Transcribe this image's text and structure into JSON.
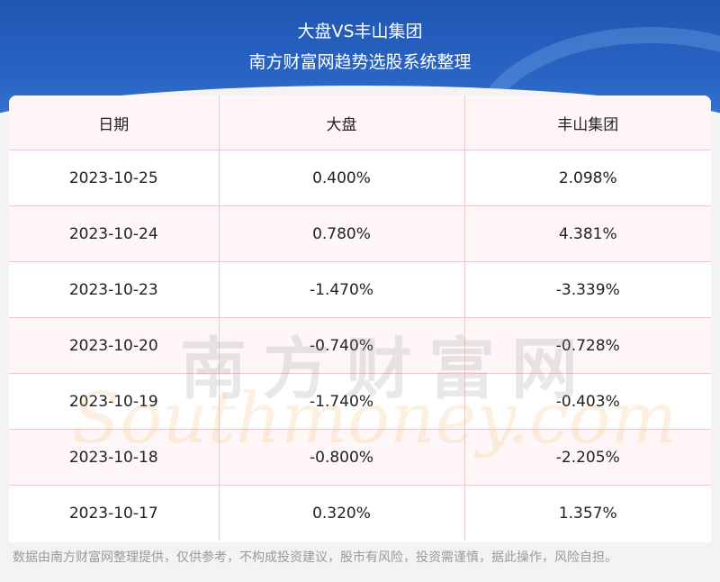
{
  "header": {
    "title": "大盘VS丰山集团",
    "subtitle": "南方财富网趋势选股系统整理"
  },
  "table": {
    "columns": [
      "日期",
      "大盘",
      "丰山集团"
    ],
    "rows": [
      [
        "2023-10-25",
        "0.400%",
        "2.098%"
      ],
      [
        "2023-10-24",
        "0.780%",
        "4.381%"
      ],
      [
        "2023-10-23",
        "-1.470%",
        "-3.339%"
      ],
      [
        "2023-10-20",
        "-0.740%",
        "-0.728%"
      ],
      [
        "2023-10-19",
        "-1.740%",
        "-0.403%"
      ],
      [
        "2023-10-18",
        "-0.800%",
        "-2.205%"
      ],
      [
        "2023-10-17",
        "0.320%",
        "1.357%"
      ]
    ]
  },
  "watermark": {
    "chinese": "南方财富网",
    "english": "Southmoney.com"
  },
  "footer": {
    "disclaimer": "数据由南方财富网整理提供，仅供参考，不构成投资建议，股市有风险，投资需谨慎，据此操作，风险自担。"
  }
}
